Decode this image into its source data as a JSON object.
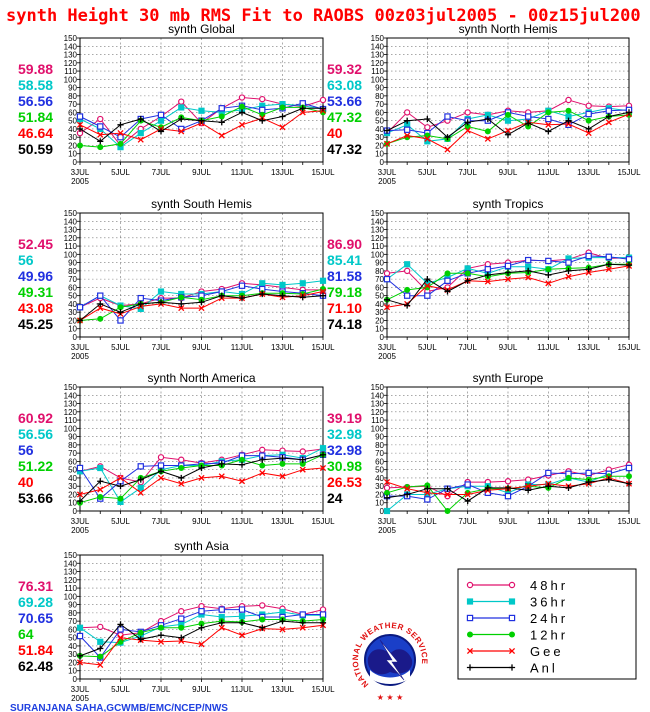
{
  "title": "synth Height 30 mb RMS Fit to RAOBS 00z03jul2005 - 00z15jul200",
  "credit": "SURANJANA SAHA,GCWMB/EMC/NCEP/NWS",
  "logo_text": "NATIONAL WEATHER SERVICE",
  "legend": [
    {
      "label": "48hr",
      "color": "#e0106c",
      "marker": "open-circle"
    },
    {
      "label": "36hr",
      "color": "#00c8c8",
      "marker": "filled-square"
    },
    {
      "label": "24hr",
      "color": "#2030e0",
      "marker": "open-square"
    },
    {
      "label": "12hr",
      "color": "#00d000",
      "marker": "filled-circle"
    },
    {
      "label": "Gee",
      "color": "#ff0000",
      "marker": "x"
    },
    {
      "label": "Anl",
      "color": "#000000",
      "marker": "plus"
    }
  ],
  "chart_data": [
    {
      "type": "line",
      "title": "synth Global",
      "summary": [
        "59.88",
        "58.58",
        "56.56",
        "51.84",
        "46.64",
        "50.59"
      ],
      "x": [
        "3JUL",
        "4JUL",
        "5JUL",
        "6JUL",
        "7JUL",
        "8JUL",
        "9JUL",
        "10JUL",
        "11JUL",
        "12JUL",
        "13JUL",
        "14JUL",
        "15JUL"
      ],
      "x_tick_labels": [
        "3JUL",
        "5JUL",
        "7JUL",
        "9JUL",
        "11JUL",
        "13JUL",
        "15JUL"
      ],
      "x_sublabel": "2005",
      "ylim": [
        0,
        150
      ],
      "y_ticks": [
        0,
        10,
        20,
        30,
        40,
        50,
        60,
        70,
        80,
        90,
        100,
        110,
        120,
        130,
        140,
        150
      ],
      "grid": true,
      "series": [
        {
          "name": "48hr",
          "values": [
            35,
            52,
            20,
            40,
            55,
            73,
            47,
            65,
            78,
            76,
            70,
            67,
            75
          ]
        },
        {
          "name": "36hr",
          "values": [
            52,
            40,
            18,
            35,
            50,
            66,
            62,
            60,
            63,
            68,
            70,
            68,
            64
          ]
        },
        {
          "name": "24hr",
          "values": [
            55,
            43,
            30,
            52,
            57,
            40,
            50,
            65,
            68,
            63,
            65,
            71,
            64
          ]
        },
        {
          "name": "12hr",
          "values": [
            20,
            18,
            22,
            50,
            42,
            54,
            50,
            55,
            67,
            57,
            66,
            66,
            60
          ]
        },
        {
          "name": "Gee",
          "values": [
            45,
            33,
            35,
            27,
            40,
            37,
            47,
            32,
            45,
            53,
            42,
            60,
            62
          ]
        },
        {
          "name": "Anl",
          "values": [
            40,
            25,
            45,
            52,
            37,
            52,
            50,
            48,
            60,
            50,
            55,
            65,
            65
          ]
        }
      ]
    },
    {
      "type": "line",
      "title": "synth North Hemis",
      "summary": [
        "59.32",
        "63.08",
        "53.66",
        "47.32",
        "40",
        "47.32"
      ],
      "x": [
        "3JUL",
        "4JUL",
        "5JUL",
        "6JUL",
        "7JUL",
        "8JUL",
        "9JUL",
        "10JUL",
        "11JUL",
        "12JUL",
        "13JUL",
        "14JUL",
        "15JUL"
      ],
      "x_tick_labels": [
        "3JUL",
        "5JUL",
        "7JUL",
        "9JUL",
        "11JUL",
        "13JUL",
        "15JUL"
      ],
      "x_sublabel": "2005",
      "ylim": [
        0,
        150
      ],
      "y_ticks": [
        0,
        10,
        20,
        30,
        40,
        50,
        60,
        70,
        80,
        90,
        100,
        110,
        120,
        130,
        140,
        150
      ],
      "grid": true,
      "series": [
        {
          "name": "48hr",
          "values": [
            35,
            60,
            42,
            50,
            60,
            57,
            62,
            60,
            62,
            75,
            68,
            67,
            68
          ]
        },
        {
          "name": "36hr",
          "values": [
            35,
            45,
            25,
            28,
            52,
            57,
            50,
            52,
            62,
            55,
            60,
            65,
            62
          ]
        },
        {
          "name": "24hr",
          "values": [
            38,
            39,
            35,
            55,
            50,
            50,
            60,
            55,
            52,
            45,
            58,
            62,
            63
          ]
        },
        {
          "name": "12hr",
          "values": [
            22,
            30,
            32,
            28,
            43,
            37,
            57,
            43,
            60,
            62,
            50,
            55,
            57
          ]
        },
        {
          "name": "Gee",
          "values": [
            22,
            32,
            28,
            15,
            38,
            28,
            38,
            48,
            45,
            46,
            35,
            48,
            58
          ]
        },
        {
          "name": "Anl",
          "values": [
            38,
            50,
            52,
            30,
            48,
            52,
            33,
            47,
            37,
            50,
            40,
            55,
            60
          ]
        }
      ]
    },
    {
      "type": "line",
      "title": "synth South Hemis",
      "summary": [
        "52.45",
        "56",
        "49.96",
        "49.31",
        "43.08",
        "45.25"
      ],
      "x": [
        "3JUL",
        "4JUL",
        "5JUL",
        "6JUL",
        "7JUL",
        "8JUL",
        "9JUL",
        "10JUL",
        "11JUL",
        "12JUL",
        "13JUL",
        "14JUL",
        "15JUL"
      ],
      "x_tick_labels": [
        "3JUL",
        "5JUL",
        "7JUL",
        "9JUL",
        "11JUL",
        "13JUL",
        "15JUL"
      ],
      "x_sublabel": "2005",
      "ylim": [
        0,
        150
      ],
      "y_ticks": [
        0,
        10,
        20,
        30,
        40,
        50,
        60,
        70,
        80,
        90,
        100,
        110,
        120,
        130,
        140,
        150
      ],
      "grid": true,
      "series": [
        {
          "name": "48hr",
          "values": [
            36,
            47,
            38,
            40,
            47,
            47,
            55,
            58,
            65,
            63,
            60,
            57,
            57
          ]
        },
        {
          "name": "36hr",
          "values": [
            36,
            50,
            38,
            34,
            55,
            52,
            52,
            55,
            52,
            65,
            63,
            65,
            68
          ]
        },
        {
          "name": "24hr",
          "values": [
            36,
            50,
            20,
            47,
            44,
            48,
            50,
            55,
            62,
            58,
            55,
            53,
            50
          ]
        },
        {
          "name": "12hr",
          "values": [
            20,
            22,
            36,
            40,
            42,
            48,
            45,
            50,
            50,
            53,
            53,
            52,
            58
          ]
        },
        {
          "name": "Gee",
          "values": [
            20,
            35,
            28,
            37,
            40,
            35,
            35,
            47,
            47,
            52,
            48,
            50,
            55
          ]
        },
        {
          "name": "Anl",
          "values": [
            20,
            40,
            30,
            40,
            42,
            40,
            42,
            50,
            47,
            52,
            50,
            48,
            50
          ]
        }
      ]
    },
    {
      "type": "line",
      "title": "synth Tropics",
      "summary": [
        "86.90",
        "85.41",
        "81.58",
        "79.18",
        "71.10",
        "74.18"
      ],
      "x": [
        "3JUL",
        "4JUL",
        "5JUL",
        "6JUL",
        "7JUL",
        "8JUL",
        "9JUL",
        "10JUL",
        "11JUL",
        "12JUL",
        "13JUL",
        "14JUL",
        "15JUL"
      ],
      "x_tick_labels": [
        "3JUL",
        "5JUL",
        "7JUL",
        "9JUL",
        "11JUL",
        "13JUL",
        "15JUL"
      ],
      "x_sublabel": "2005",
      "ylim": [
        0,
        150
      ],
      "y_ticks": [
        0,
        10,
        20,
        30,
        40,
        50,
        60,
        70,
        80,
        90,
        100,
        110,
        120,
        130,
        140,
        150
      ],
      "grid": true,
      "series": [
        {
          "name": "48hr",
          "values": [
            77,
            80,
            55,
            60,
            83,
            88,
            90,
            93,
            92,
            94,
            102,
            95,
            96
          ]
        },
        {
          "name": "36hr",
          "values": [
            70,
            88,
            65,
            72,
            83,
            77,
            85,
            85,
            82,
            95,
            96,
            96,
            96
          ]
        },
        {
          "name": "24hr",
          "values": [
            70,
            50,
            50,
            68,
            77,
            82,
            86,
            93,
            92,
            90,
            98,
            97,
            94
          ]
        },
        {
          "name": "12hr",
          "values": [
            45,
            57,
            60,
            77,
            77,
            73,
            77,
            78,
            82,
            83,
            84,
            88,
            88
          ]
        },
        {
          "name": "Gee",
          "values": [
            36,
            40,
            62,
            57,
            68,
            67,
            70,
            72,
            65,
            73,
            78,
            82,
            86
          ]
        },
        {
          "name": "Anl",
          "values": [
            45,
            38,
            70,
            55,
            68,
            75,
            78,
            80,
            75,
            80,
            82,
            88,
            87
          ]
        }
      ]
    },
    {
      "type": "line",
      "title": "synth North America",
      "summary": [
        "60.92",
        "56.56",
        "56",
        "51.22",
        "40",
        "53.66"
      ],
      "x": [
        "3JUL",
        "4JUL",
        "5JUL",
        "6JUL",
        "7JUL",
        "8JUL",
        "9JUL",
        "10JUL",
        "11JUL",
        "12JUL",
        "13JUL",
        "14JUL",
        "15JUL"
      ],
      "x_tick_labels": [
        "3JUL",
        "5JUL",
        "7JUL",
        "9JUL",
        "11JUL",
        "13JUL",
        "15JUL"
      ],
      "x_sublabel": "2005",
      "ylim": [
        0,
        150
      ],
      "y_ticks": [
        0,
        10,
        20,
        30,
        40,
        50,
        60,
        70,
        80,
        90,
        100,
        110,
        120,
        130,
        140,
        150
      ],
      "grid": true,
      "series": [
        {
          "name": "48hr",
          "values": [
            48,
            54,
            40,
            35,
            65,
            62,
            58,
            62,
            68,
            74,
            73,
            72,
            75
          ]
        },
        {
          "name": "36hr",
          "values": [
            48,
            52,
            11,
            28,
            50,
            55,
            55,
            60,
            62,
            67,
            68,
            64,
            76
          ]
        },
        {
          "name": "24hr",
          "values": [
            52,
            15,
            36,
            54,
            55,
            55,
            57,
            58,
            67,
            67,
            65,
            62,
            68
          ]
        },
        {
          "name": "12hr",
          "values": [
            10,
            17,
            15,
            40,
            48,
            52,
            55,
            55,
            62,
            55,
            57,
            57,
            68
          ]
        },
        {
          "name": "Gee",
          "values": [
            20,
            26,
            40,
            22,
            40,
            33,
            40,
            42,
            36,
            46,
            42,
            50,
            52
          ]
        },
        {
          "name": "Anl",
          "values": [
            12,
            36,
            30,
            38,
            48,
            40,
            52,
            57,
            56,
            62,
            64,
            62,
            68
          ]
        }
      ]
    },
    {
      "type": "line",
      "title": "synth Europe",
      "summary": [
        "39.19",
        "32.98",
        "32.98",
        "30.98",
        "26.53",
        "24"
      ],
      "x": [
        "3JUL",
        "4JUL",
        "5JUL",
        "6JUL",
        "7JUL",
        "8JUL",
        "9JUL",
        "10JUL",
        "11JUL",
        "12JUL",
        "13JUL",
        "14JUL",
        "15JUL"
      ],
      "x_tick_labels": [
        "3JUL",
        "5JUL",
        "7JUL",
        "9JUL",
        "11JUL",
        "13JUL",
        "15JUL"
      ],
      "x_sublabel": "2005",
      "ylim": [
        0,
        150
      ],
      "y_ticks": [
        0,
        10,
        20,
        30,
        40,
        50,
        60,
        70,
        80,
        90,
        100,
        110,
        120,
        130,
        140,
        150
      ],
      "grid": true,
      "series": [
        {
          "name": "48hr",
          "values": [
            28,
            29,
            30,
            18,
            35,
            35,
            36,
            38,
            43,
            48,
            43,
            50,
            56
          ]
        },
        {
          "name": "36hr",
          "values": [
            0,
            20,
            20,
            27,
            30,
            30,
            22,
            32,
            32,
            40,
            35,
            45,
            52
          ]
        },
        {
          "name": "24hr",
          "values": [
            18,
            18,
            14,
            27,
            32,
            22,
            18,
            30,
            46,
            45,
            46,
            45,
            52
          ]
        },
        {
          "name": "12hr",
          "values": [
            22,
            29,
            31,
            0,
            22,
            27,
            27,
            30,
            28,
            40,
            38,
            42,
            42
          ]
        },
        {
          "name": "Gee",
          "values": [
            35,
            27,
            22,
            20,
            20,
            25,
            27,
            30,
            33,
            30,
            33,
            40,
            33
          ]
        },
        {
          "name": "Anl",
          "values": [
            16,
            20,
            27,
            27,
            12,
            28,
            28,
            25,
            30,
            28,
            35,
            38,
            33
          ]
        }
      ]
    },
    {
      "type": "line",
      "title": "synth Asia",
      "summary": [
        "76.31",
        "69.28",
        "70.65",
        "64",
        "51.84",
        "62.48"
      ],
      "x": [
        "3JUL",
        "4JUL",
        "5JUL",
        "6JUL",
        "7JUL",
        "8JUL",
        "9JUL",
        "10JUL",
        "11JUL",
        "12JUL",
        "13JUL",
        "14JUL",
        "15JUL"
      ],
      "x_tick_labels": [
        "3JUL",
        "5JUL",
        "7JUL",
        "9JUL",
        "11JUL",
        "13JUL",
        "15JUL"
      ],
      "x_sublabel": "2005",
      "ylim": [
        0,
        150
      ],
      "y_ticks": [
        0,
        10,
        20,
        30,
        40,
        50,
        60,
        70,
        80,
        90,
        100,
        110,
        120,
        130,
        140,
        150
      ],
      "grid": true,
      "series": [
        {
          "name": "48hr",
          "values": [
            62,
            63,
            53,
            56,
            70,
            82,
            88,
            85,
            88,
            89,
            85,
            78,
            84
          ]
        },
        {
          "name": "36hr",
          "values": [
            62,
            45,
            44,
            52,
            63,
            66,
            78,
            75,
            76,
            78,
            81,
            77,
            77
          ]
        },
        {
          "name": "24hr",
          "values": [
            52,
            26,
            60,
            57,
            65,
            73,
            82,
            84,
            84,
            75,
            75,
            78,
            78
          ]
        },
        {
          "name": "12hr",
          "values": [
            28,
            27,
            45,
            56,
            62,
            62,
            67,
            70,
            69,
            72,
            72,
            70,
            72
          ]
        },
        {
          "name": "Gee",
          "values": [
            20,
            17,
            50,
            47,
            45,
            46,
            42,
            62,
            53,
            61,
            60,
            62,
            65
          ]
        },
        {
          "name": "Anl",
          "values": [
            28,
            37,
            66,
            48,
            53,
            50,
            62,
            68,
            68,
            62,
            70,
            68,
            68
          ]
        }
      ]
    }
  ]
}
